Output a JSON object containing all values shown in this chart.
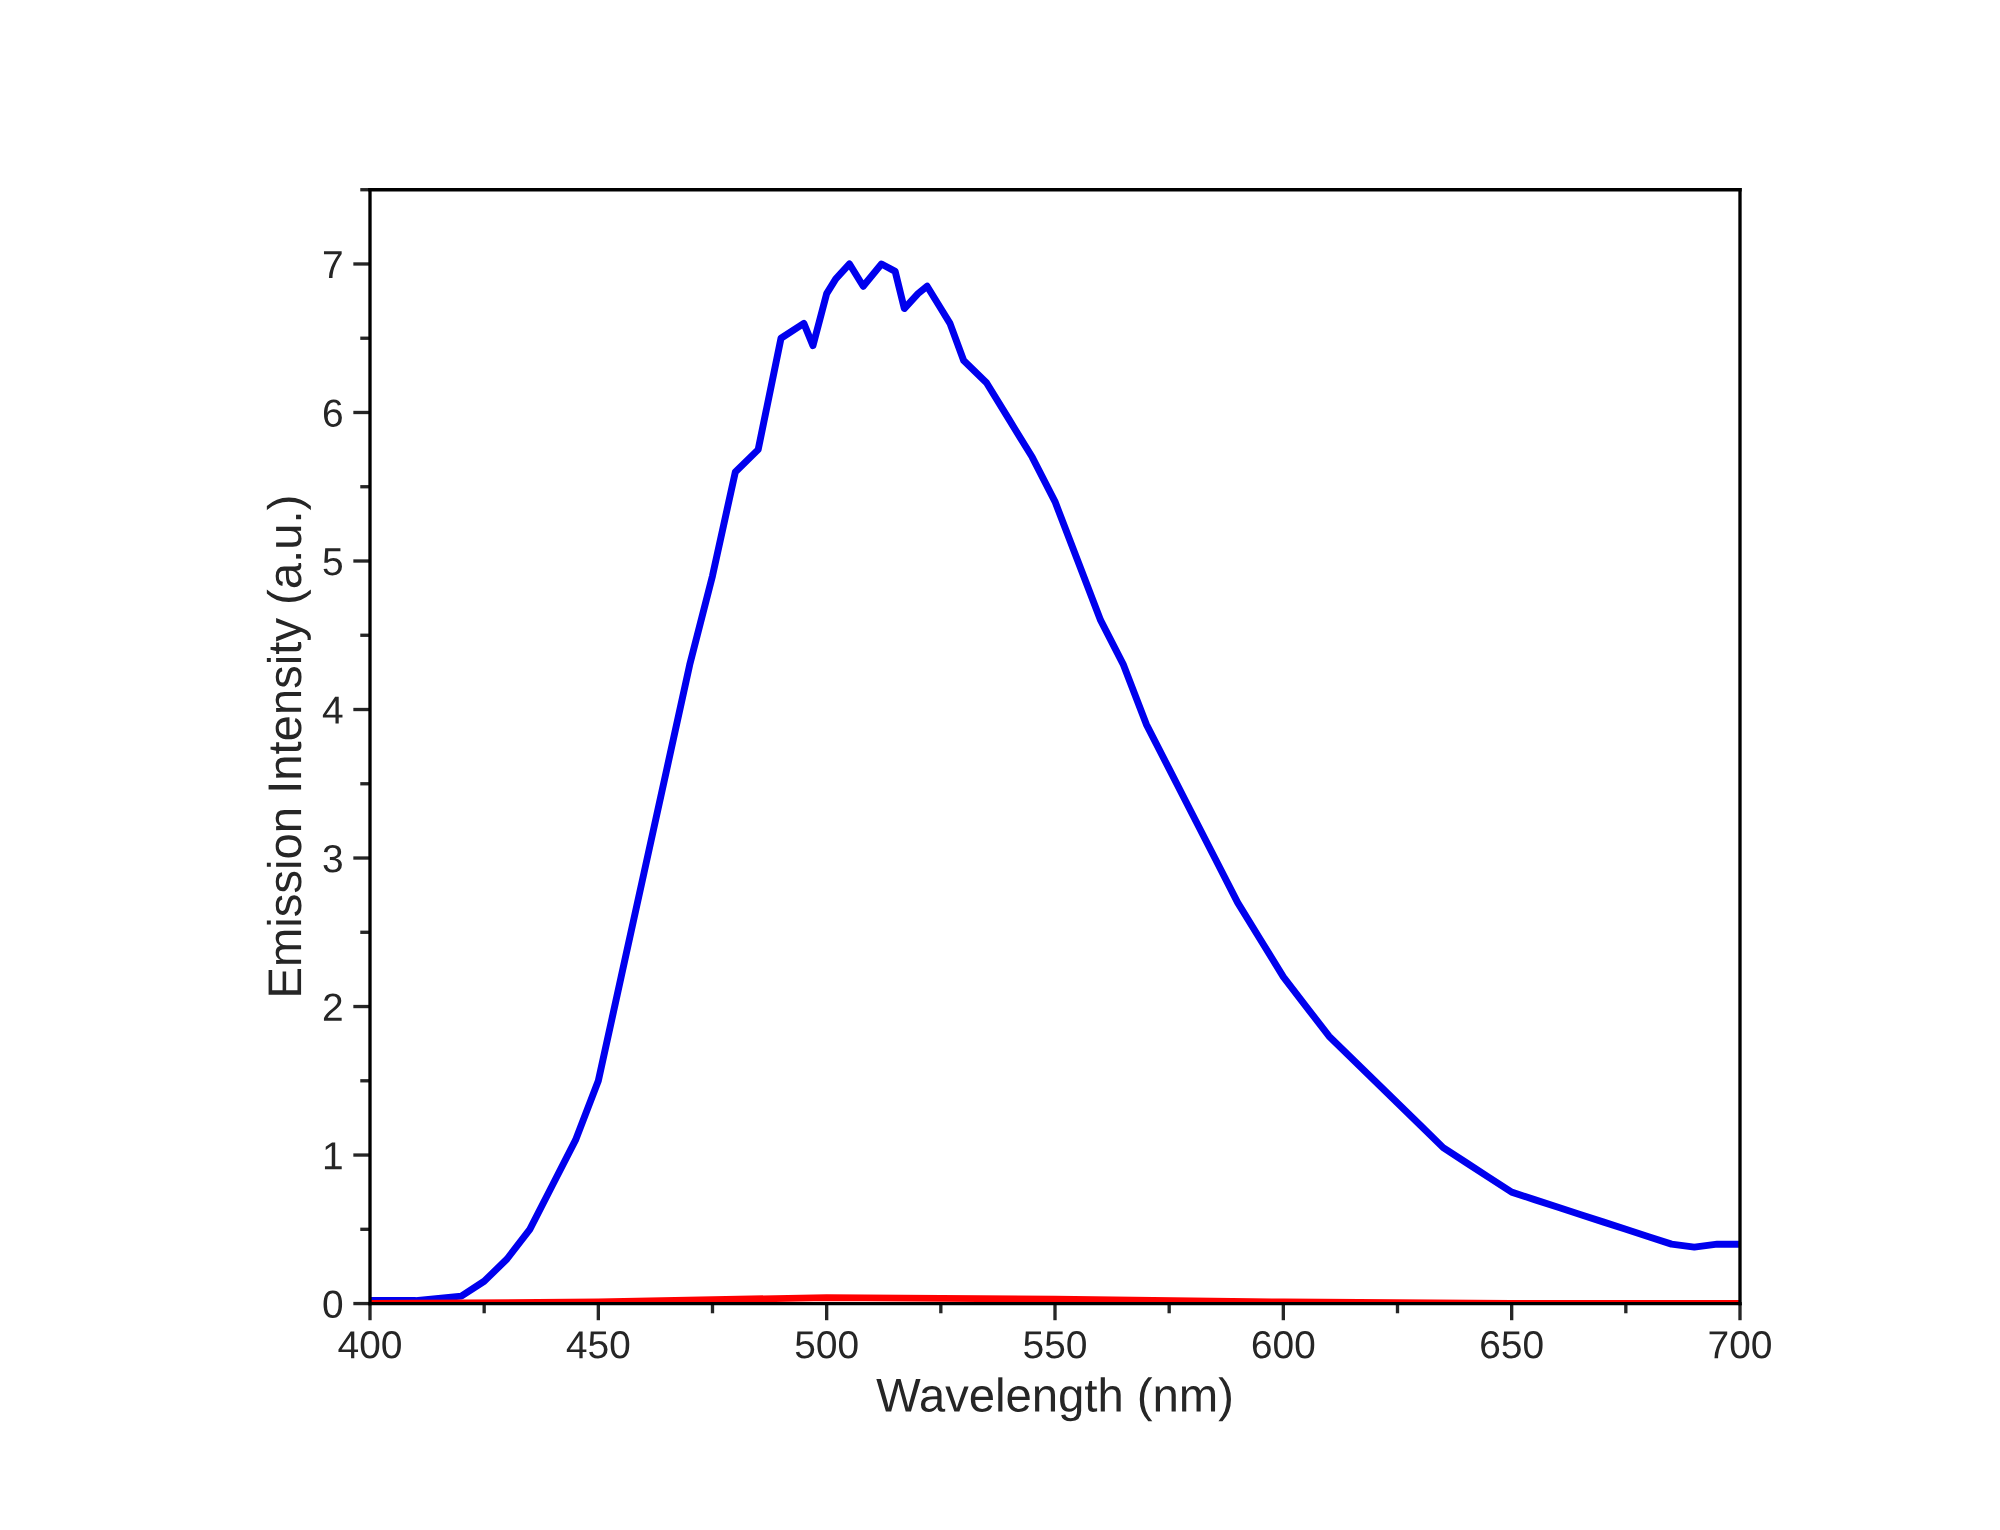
{
  "chart_data": {
    "type": "line",
    "xlabel": "Wavelength (nm)",
    "ylabel": "Emission Intensity (a.u.)",
    "xlim": [
      400,
      700
    ],
    "xticks": [
      400,
      450,
      500,
      550,
      600,
      650,
      700
    ],
    "ylim": [
      0,
      7.5
    ],
    "yticks": [
      0,
      1,
      2,
      3,
      4,
      5,
      6,
      7
    ],
    "grid": false,
    "legend": false,
    "marker": "none",
    "line_style": "solid",
    "series": [
      {
        "color": "#0000ee",
        "x": [
          400,
          410,
          420,
          425,
          430,
          435,
          440,
          445,
          450,
          455,
          460,
          465,
          470,
          475,
          480,
          485,
          490,
          495,
          497,
          500,
          502,
          505,
          508,
          512,
          515,
          517,
          520,
          522,
          525,
          527,
          530,
          535,
          540,
          545,
          550,
          555,
          560,
          565,
          570,
          575,
          580,
          585,
          590,
          595,
          600,
          605,
          610,
          615,
          620,
          625,
          630,
          635,
          640,
          645,
          650,
          655,
          660,
          665,
          670,
          675,
          680,
          685,
          690,
          695,
          700
        ],
        "values": [
          0.02,
          0.02,
          0.05,
          0.15,
          0.3,
          0.5,
          0.8,
          1.1,
          1.5,
          2.2,
          2.9,
          3.6,
          4.3,
          4.9,
          5.6,
          5.75,
          6.5,
          6.6,
          6.45,
          6.8,
          6.9,
          7.0,
          6.85,
          7.0,
          6.95,
          6.7,
          6.8,
          6.85,
          6.7,
          6.6,
          6.35,
          6.2,
          5.95,
          5.7,
          5.4,
          5.0,
          4.6,
          4.3,
          3.9,
          3.6,
          3.3,
          3.0,
          2.7,
          2.45,
          2.2,
          2.0,
          1.8,
          1.65,
          1.5,
          1.35,
          1.2,
          1.05,
          0.95,
          0.85,
          0.75,
          0.7,
          0.65,
          0.6,
          0.55,
          0.5,
          0.45,
          0.4,
          0.38,
          0.4,
          0.4
        ]
      },
      {
        "color": "#ff0000",
        "x": [
          400,
          450,
          500,
          550,
          600,
          650,
          700
        ],
        "values": [
          0,
          0.01,
          0.04,
          0.03,
          0.01,
          0,
          0
        ]
      }
    ]
  }
}
